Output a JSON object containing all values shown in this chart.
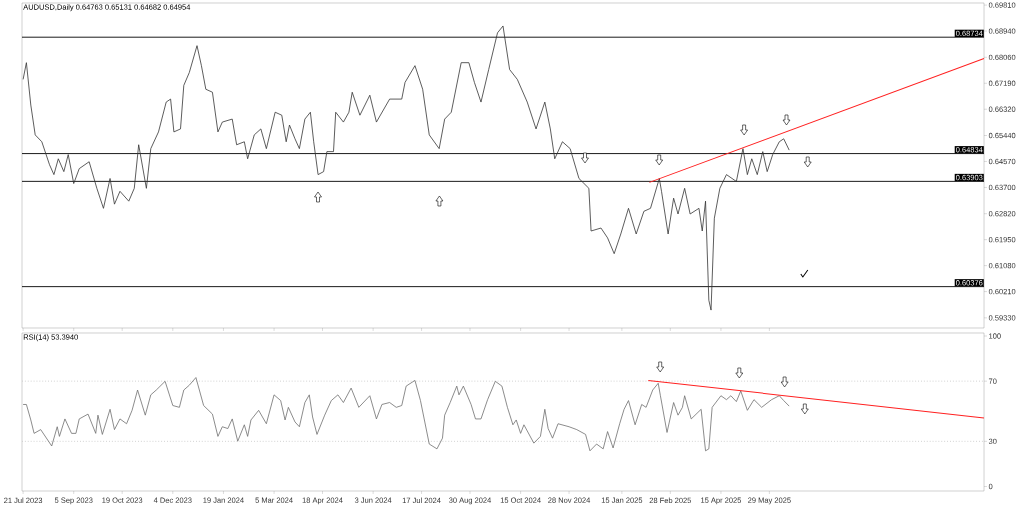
{
  "chart_data": [
    {
      "type": "line",
      "title": "AUDUSD,Daily  0.64763 0.65131 0.64682 0.64954",
      "tick_labels": "y",
      "xlim": [
        "2023-07-20",
        "2025-12-10"
      ],
      "xticks": [
        {
          "value": "2023-07-21",
          "label": null
        },
        {
          "value": "2023-09-05",
          "label": null
        },
        {
          "value": "2023-10-19",
          "label": null
        },
        {
          "value": "2023-12-04",
          "label": null
        },
        {
          "value": "2024-01-19",
          "label": null
        },
        {
          "value": "2024-03-05",
          "label": null
        },
        {
          "value": "2024-04-18",
          "label": null
        },
        {
          "value": "2024-06-03",
          "label": null
        },
        {
          "value": "2024-07-17",
          "label": null
        },
        {
          "value": "2024-08-30",
          "label": null
        },
        {
          "value": "2024-10-15",
          "label": null
        },
        {
          "value": "2024-11-28",
          "label": null
        },
        {
          "value": "2025-01-15",
          "label": null
        },
        {
          "value": "2025-02-28",
          "label": null
        },
        {
          "value": "2025-04-15",
          "label": null
        },
        {
          "value": "2025-05-29",
          "label": null
        }
      ],
      "ylim": [
        0.5899,
        0.6988
      ],
      "yticks": [
        {
          "value": 0.6981,
          "label": "0.69810"
        },
        {
          "value": 0.6894,
          "label": "0.68940"
        },
        {
          "value": 0.6806,
          "label": "0.68060"
        },
        {
          "value": 0.6719,
          "label": "0.67190"
        },
        {
          "value": 0.6632,
          "label": "0.66320"
        },
        {
          "value": 0.6544,
          "label": "0.65440"
        },
        {
          "value": 0.6457,
          "label": "0.64570"
        },
        {
          "value": 0.637,
          "label": "0.63700"
        },
        {
          "value": 0.6282,
          "label": "0.62820"
        },
        {
          "value": 0.6195,
          "label": "0.61950"
        },
        {
          "value": 0.6108,
          "label": "0.61080"
        },
        {
          "value": 0.6021,
          "label": "0.60210"
        },
        {
          "value": 0.5933,
          "label": "0.59330"
        }
      ],
      "series": [
        {
          "color": "#333333",
          "x": [
            "2023-07-21",
            "2023-07-24",
            "2023-07-28",
            "2023-08-01",
            "2023-08-07",
            "2023-08-14",
            "2023-08-18",
            "2023-08-22",
            "2023-08-27",
            "2023-08-31",
            "2023-09-05",
            "2023-09-10",
            "2023-09-19",
            "2023-09-26",
            "2023-10-02",
            "2023-10-08",
            "2023-10-12",
            "2023-10-17",
            "2023-10-25",
            "2023-10-30",
            "2023-11-03",
            "2023-11-10",
            "2023-11-14",
            "2023-11-21",
            "2023-11-28",
            "2023-12-02",
            "2023-12-05",
            "2023-12-11",
            "2023-12-14",
            "2023-12-19",
            "2023-12-26",
            "2023-12-30",
            "2024-01-03",
            "2024-01-09",
            "2024-01-14",
            "2024-01-18",
            "2024-01-27",
            "2024-01-31",
            "2024-02-07",
            "2024-02-10",
            "2024-02-16",
            "2024-02-22",
            "2024-02-27",
            "2024-03-06",
            "2024-03-12",
            "2024-03-16",
            "2024-03-19",
            "2024-03-24",
            "2024-03-28",
            "2024-04-02",
            "2024-04-07",
            "2024-04-10",
            "2024-04-14",
            "2024-04-19",
            "2024-04-22",
            "2024-04-28",
            "2024-04-30",
            "2024-05-07",
            "2024-05-12",
            "2024-05-15",
            "2024-05-22",
            "2024-05-31",
            "2024-06-06",
            "2024-06-18",
            "2024-06-29",
            "2024-07-02",
            "2024-07-11",
            "2024-07-18",
            "2024-07-24",
            "2024-08-02",
            "2024-08-07",
            "2024-08-13",
            "2024-08-22",
            "2024-08-29",
            "2024-09-03",
            "2024-09-09",
            "2024-09-16",
            "2024-09-24",
            "2024-09-29",
            "2024-10-05",
            "2024-10-12",
            "2024-10-21",
            "2024-10-29",
            "2024-11-06",
            "2024-11-11",
            "2024-11-15",
            "2024-11-22",
            "2024-11-29",
            "2024-12-07",
            "2024-12-16",
            "2024-12-18",
            "2024-12-27",
            "2025-01-02",
            "2025-01-08",
            "2025-01-14",
            "2025-01-21",
            "2025-01-28",
            "2025-02-04",
            "2025-02-10",
            "2025-02-18",
            "2025-02-20",
            "2025-02-26",
            "2025-03-03",
            "2025-03-07",
            "2025-03-13",
            "2025-03-18",
            "2025-03-26",
            "2025-03-29",
            "2025-04-01",
            "2025-04-04",
            "2025-04-06",
            "2025-04-09",
            "2025-04-14",
            "2025-04-20",
            "2025-04-29",
            "2025-05-05",
            "2025-05-09",
            "2025-05-13",
            "2025-05-18",
            "2025-05-23",
            "2025-05-27",
            "2025-06-01",
            "2025-06-07",
            "2025-06-11",
            "2025-06-16"
          ],
          "values": [
            0.6732,
            0.6788,
            0.6646,
            0.6546,
            0.6523,
            0.6446,
            0.6413,
            0.6466,
            0.6423,
            0.648,
            0.6383,
            0.6433,
            0.6456,
            0.6367,
            0.63,
            0.64,
            0.6314,
            0.6357,
            0.6324,
            0.6367,
            0.6513,
            0.6367,
            0.65,
            0.6556,
            0.6656,
            0.6666,
            0.6556,
            0.6566,
            0.6712,
            0.6755,
            0.6845,
            0.6778,
            0.6699,
            0.6689,
            0.6556,
            0.6589,
            0.6599,
            0.6513,
            0.6523,
            0.6466,
            0.6546,
            0.6566,
            0.65,
            0.6622,
            0.6612,
            0.6523,
            0.6579,
            0.6533,
            0.65,
            0.6599,
            0.6622,
            0.6523,
            0.6413,
            0.6423,
            0.649,
            0.649,
            0.6622,
            0.6589,
            0.6622,
            0.6689,
            0.6612,
            0.6679,
            0.6589,
            0.6666,
            0.6666,
            0.6722,
            0.6778,
            0.6699,
            0.6546,
            0.65,
            0.6599,
            0.6622,
            0.6788,
            0.6788,
            0.6722,
            0.6656,
            0.6765,
            0.6888,
            0.6911,
            0.6765,
            0.6732,
            0.6656,
            0.6566,
            0.6656,
            0.6566,
            0.6466,
            0.6523,
            0.65,
            0.64,
            0.6367,
            0.6224,
            0.6234,
            0.6201,
            0.6148,
            0.6214,
            0.63,
            0.6214,
            0.629,
            0.63,
            0.64,
            0.6357,
            0.6214,
            0.6334,
            0.6281,
            0.6367,
            0.6281,
            0.63,
            0.6224,
            0.6324,
            0.5992,
            0.5959,
            0.6267,
            0.6367,
            0.6413,
            0.639,
            0.65,
            0.6413,
            0.6466,
            0.6413,
            0.649,
            0.6423,
            0.648,
            0.6523,
            0.6533,
            0.6495
          ]
        },
        {
          "type": "line",
          "color": "#ff2020",
          "x": [
            "2025-02-09",
            "2025-12-10"
          ],
          "values": [
            0.6387,
            0.6802
          ]
        }
      ],
      "ref_lines": [
        {
          "axis": "y",
          "value": 0.68734,
          "label": "0.68734",
          "color": "#000000"
        },
        {
          "axis": "y",
          "value": 0.64834,
          "label": "0.64834",
          "color": "#000000"
        },
        {
          "axis": "y",
          "value": 0.63903,
          "label": "0.63903",
          "color": "#000000"
        },
        {
          "axis": "y",
          "value": 0.60376,
          "label": "0.60376",
          "color": "#000000"
        }
      ]
    },
    {
      "type": "line",
      "title": "RSI(14) 53.3940",
      "xlim": [
        "2023-07-20",
        "2025-12-10"
      ],
      "xticks": [
        {
          "value": "2023-07-21",
          "label": "21 Jul 2023"
        },
        {
          "value": "2023-09-05",
          "label": "5 Sep 2023"
        },
        {
          "value": "2023-10-19",
          "label": "19 Oct 2023"
        },
        {
          "value": "2023-12-04",
          "label": "4 Dec 2023"
        },
        {
          "value": "2024-01-19",
          "label": "19 Jan 2024"
        },
        {
          "value": "2024-03-05",
          "label": "5 Mar 2024"
        },
        {
          "value": "2024-04-18",
          "label": "18 Apr 2024"
        },
        {
          "value": "2024-06-03",
          "label": "3 Jun 2024"
        },
        {
          "value": "2024-07-17",
          "label": "17 Jul 2024"
        },
        {
          "value": "2024-08-30",
          "label": "30 Aug 2024"
        },
        {
          "value": "2024-10-15",
          "label": "15 Oct 2024"
        },
        {
          "value": "2024-11-28",
          "label": "28 Nov 2024"
        },
        {
          "value": "2025-01-15",
          "label": "15 Jan 2025"
        },
        {
          "value": "2025-02-28",
          "label": "28 Feb 2025"
        },
        {
          "value": "2025-04-15",
          "label": "15 Apr 2025"
        },
        {
          "value": "2025-05-29",
          "label": "29 May 2025"
        }
      ],
      "ylim": [
        -3,
        102
      ],
      "yticks": [
        0,
        30,
        70,
        100
      ],
      "series": [
        {
          "color": "#6e6e6e",
          "x": [
            "2023-07-21",
            "2023-07-24",
            "2023-07-28",
            "2023-07-31",
            "2023-08-06",
            "2023-08-16",
            "2023-08-21",
            "2023-08-23",
            "2023-08-28",
            "2023-09-03",
            "2023-09-07",
            "2023-09-10",
            "2023-09-18",
            "2023-09-25",
            "2023-09-27",
            "2023-10-01",
            "2023-10-08",
            "2023-10-12",
            "2023-10-17",
            "2023-10-23",
            "2023-10-28",
            "2023-11-02",
            "2023-11-09",
            "2023-11-14",
            "2023-11-19",
            "2023-11-27",
            "2023-12-04",
            "2023-12-10",
            "2023-12-14",
            "2023-12-19",
            "2023-12-25",
            "2024-01-01",
            "2024-01-09",
            "2024-01-14",
            "2024-01-18",
            "2024-01-23",
            "2024-01-27",
            "2024-02-01",
            "2024-02-07",
            "2024-02-10",
            "2024-02-13",
            "2024-02-20",
            "2024-02-27",
            "2024-03-05",
            "2024-03-11",
            "2024-03-15",
            "2024-03-18",
            "2024-03-24",
            "2024-03-28",
            "2024-04-02",
            "2024-04-06",
            "2024-04-09",
            "2024-04-13",
            "2024-04-20",
            "2024-04-26",
            "2024-05-02",
            "2024-05-07",
            "2024-05-14",
            "2024-05-21",
            "2024-05-31",
            "2024-06-06",
            "2024-06-11",
            "2024-06-18",
            "2024-06-24",
            "2024-06-29",
            "2024-07-03",
            "2024-07-11",
            "2024-07-16",
            "2024-07-24",
            "2024-07-31",
            "2024-08-05",
            "2024-08-07",
            "2024-08-12",
            "2024-08-18",
            "2024-08-20",
            "2024-08-24",
            "2024-08-31",
            "2024-09-04",
            "2024-09-09",
            "2024-09-15",
            "2024-09-22",
            "2024-09-28",
            "2024-10-03",
            "2024-10-08",
            "2024-10-11",
            "2024-10-15",
            "2024-10-18",
            "2024-10-27",
            "2024-11-02",
            "2024-11-06",
            "2024-11-09",
            "2024-11-13",
            "2024-11-18",
            "2024-11-28",
            "2024-12-05",
            "2024-12-13",
            "2024-12-17",
            "2024-12-23",
            "2024-12-29",
            "2025-01-02",
            "2025-01-07",
            "2025-01-13",
            "2025-01-17",
            "2025-01-21",
            "2025-01-27",
            "2025-02-02",
            "2025-02-06",
            "2025-02-12",
            "2025-02-17",
            "2025-02-19",
            "2025-02-25",
            "2025-03-03",
            "2025-03-07",
            "2025-03-11",
            "2025-03-13",
            "2025-03-19",
            "2025-03-28",
            "2025-04-01",
            "2025-04-04",
            "2025-04-07",
            "2025-04-15",
            "2025-04-20",
            "2025-04-24",
            "2025-04-29",
            "2025-05-03",
            "2025-05-09",
            "2025-05-15",
            "2025-05-22",
            "2025-05-31",
            "2025-06-07",
            "2025-06-11",
            "2025-06-16"
          ],
          "values": [
            54.5,
            54.5,
            44.2,
            35.3,
            37.8,
            26.9,
            39.7,
            33.3,
            44.9,
            35.3,
            35.3,
            44.9,
            48.1,
            35.3,
            47.4,
            34.6,
            51.3,
            37.8,
            44.9,
            41.7,
            50.6,
            64.1,
            47.4,
            60.9,
            64.1,
            69.9,
            53.8,
            52.6,
            64.1,
            67.3,
            72.4,
            53.8,
            48.1,
            33.3,
            39.7,
            38.5,
            44.9,
            30.1,
            41.0,
            33.3,
            44.2,
            50.6,
            41.7,
            60.9,
            57.1,
            44.2,
            52.6,
            42.9,
            39.7,
            55.8,
            60.9,
            46.2,
            34.6,
            47.4,
            57.1,
            60.9,
            55.8,
            65.4,
            52.6,
            60.3,
            44.9,
            54.5,
            55.8,
            52.6,
            53.8,
            66.7,
            70.5,
            57.1,
            28.2,
            25.0,
            32.1,
            47.4,
            55.8,
            66.7,
            60.9,
            66.7,
            54.5,
            44.9,
            44.9,
            57.7,
            69.9,
            66.7,
            52.6,
            41.0,
            44.2,
            35.3,
            41.0,
            28.8,
            33.3,
            51.3,
            38.5,
            32.1,
            41.7,
            39.7,
            37.8,
            34.6,
            23.7,
            28.2,
            25.0,
            36.5,
            25.6,
            41.7,
            51.3,
            57.1,
            41.0,
            54.5,
            52.6,
            64.1,
            68.6,
            60.3,
            35.9,
            55.8,
            47.4,
            52.6,
            60.3,
            44.9,
            51.3,
            23.7,
            25.0,
            52.6,
            60.3,
            57.7,
            60.3,
            56.4,
            63.5,
            50.6,
            57.7,
            52.6,
            57.7,
            60.3,
            57.1,
            53.4
          ]
        },
        {
          "type": "line",
          "color": "#ff2020",
          "x": [
            "2025-02-08",
            "2025-12-10"
          ],
          "values": [
            70.5,
            45.5
          ]
        }
      ],
      "ref_lines": [
        {
          "axis": "y",
          "value": 70,
          "color": "#c8c8c8",
          "line_style": "dotted"
        },
        {
          "axis": "y",
          "value": 30,
          "color": "#c8c8c8",
          "line_style": "dotted"
        }
      ]
    }
  ]
}
